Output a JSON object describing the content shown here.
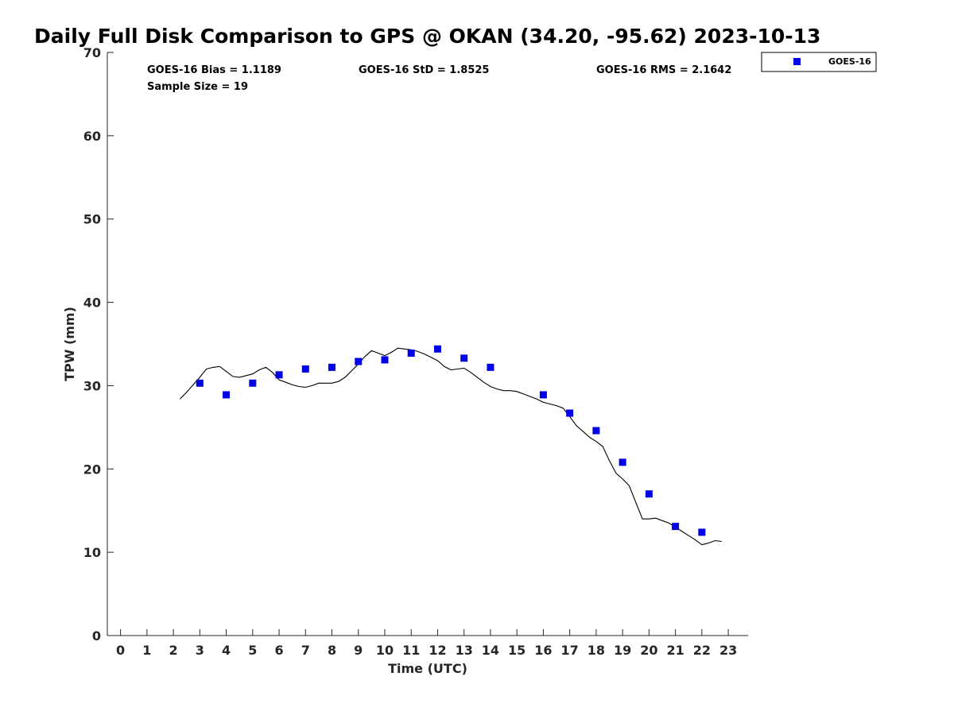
{
  "chart_data": {
    "type": "scatter",
    "title": "Daily Full Disk Comparison to GPS @ OKAN (34.20, -95.62) 2023-10-13",
    "xlabel": "Time (UTC)",
    "ylabel": "TPW (mm)",
    "xlim": [
      -0.5,
      23.75
    ],
    "ylim": [
      0,
      70
    ],
    "x_ticks": [
      "0",
      "1",
      "2",
      "3",
      "4",
      "5",
      "6",
      "7",
      "8",
      "9",
      "10",
      "11",
      "12",
      "13",
      "14",
      "15",
      "16",
      "17",
      "18",
      "19",
      "20",
      "21",
      "22",
      "23"
    ],
    "y_ticks": [
      "0",
      "10",
      "20",
      "30",
      "40",
      "50",
      "60",
      "70"
    ],
    "grid": false,
    "legend_position": "top-right",
    "stats": {
      "bias": "GOES-16 Bias = 1.1189",
      "std": "GOES-16 StD = 1.8525",
      "rms": "GOES-16 RMS = 2.1642",
      "sample": "Sample Size = 19"
    },
    "series": [
      {
        "name": "GOES-16",
        "type": "scatter",
        "color": "#0000e6",
        "marker": "square",
        "x": [
          3,
          4,
          5,
          6,
          7,
          8,
          9,
          10,
          11,
          12,
          13,
          14,
          16,
          17,
          18,
          19,
          20,
          21,
          22
        ],
        "y": [
          30.3,
          28.9,
          30.3,
          31.3,
          32.0,
          32.2,
          32.9,
          33.1,
          33.9,
          34.4,
          33.3,
          32.2,
          28.9,
          26.7,
          24.6,
          20.8,
          17.0,
          13.1,
          12.4
        ]
      },
      {
        "type": "line",
        "color": "#000000",
        "x": [
          2.25,
          2.5,
          2.75,
          3.0,
          3.25,
          3.5,
          3.75,
          4.0,
          4.25,
          4.5,
          4.75,
          5.0,
          5.25,
          5.5,
          5.75,
          6.0,
          6.25,
          6.5,
          6.75,
          7.0,
          7.25,
          7.5,
          7.75,
          8.0,
          8.25,
          8.5,
          8.75,
          9.0,
          9.25,
          9.5,
          9.75,
          10.0,
          10.25,
          10.5,
          10.75,
          11.0,
          11.25,
          11.5,
          11.75,
          12.0,
          12.25,
          12.5,
          12.75,
          13.0,
          13.25,
          13.5,
          13.75,
          14.0,
          14.25,
          14.5,
          14.75,
          15.0,
          15.25,
          15.5,
          15.75,
          16.0,
          16.25,
          16.5,
          16.75,
          17.0,
          17.25,
          17.5,
          17.75,
          18.0,
          18.25,
          18.5,
          18.75,
          19.0,
          19.25,
          19.5,
          19.75,
          20.0,
          20.25,
          20.5,
          20.75,
          21.0,
          21.25,
          21.5,
          21.75,
          22.0,
          22.25,
          22.5,
          22.75
        ],
        "y": [
          28.4,
          29.2,
          30.1,
          31.0,
          32.0,
          32.2,
          32.3,
          31.7,
          31.1,
          31.0,
          31.2,
          31.4,
          31.9,
          32.2,
          31.6,
          30.7,
          30.4,
          30.1,
          29.9,
          29.8,
          30.0,
          30.3,
          30.3,
          30.3,
          30.5,
          31.0,
          31.8,
          32.6,
          33.5,
          34.2,
          33.9,
          33.6,
          34.0,
          34.5,
          34.4,
          34.3,
          34.1,
          33.8,
          33.4,
          33.0,
          32.3,
          31.9,
          32.0,
          32.1,
          31.6,
          31.0,
          30.4,
          29.9,
          29.6,
          29.4,
          29.4,
          29.3,
          29.0,
          28.7,
          28.4,
          28.0,
          27.8,
          27.6,
          27.3,
          26.3,
          25.2,
          24.5,
          23.8,
          23.3,
          22.7,
          21.0,
          19.5,
          18.8,
          18.0,
          16.0,
          14.0,
          14.0,
          14.1,
          13.8,
          13.5,
          13.0,
          12.5,
          12.0,
          11.5,
          10.9,
          11.1,
          11.4,
          11.3
        ]
      }
    ]
  }
}
